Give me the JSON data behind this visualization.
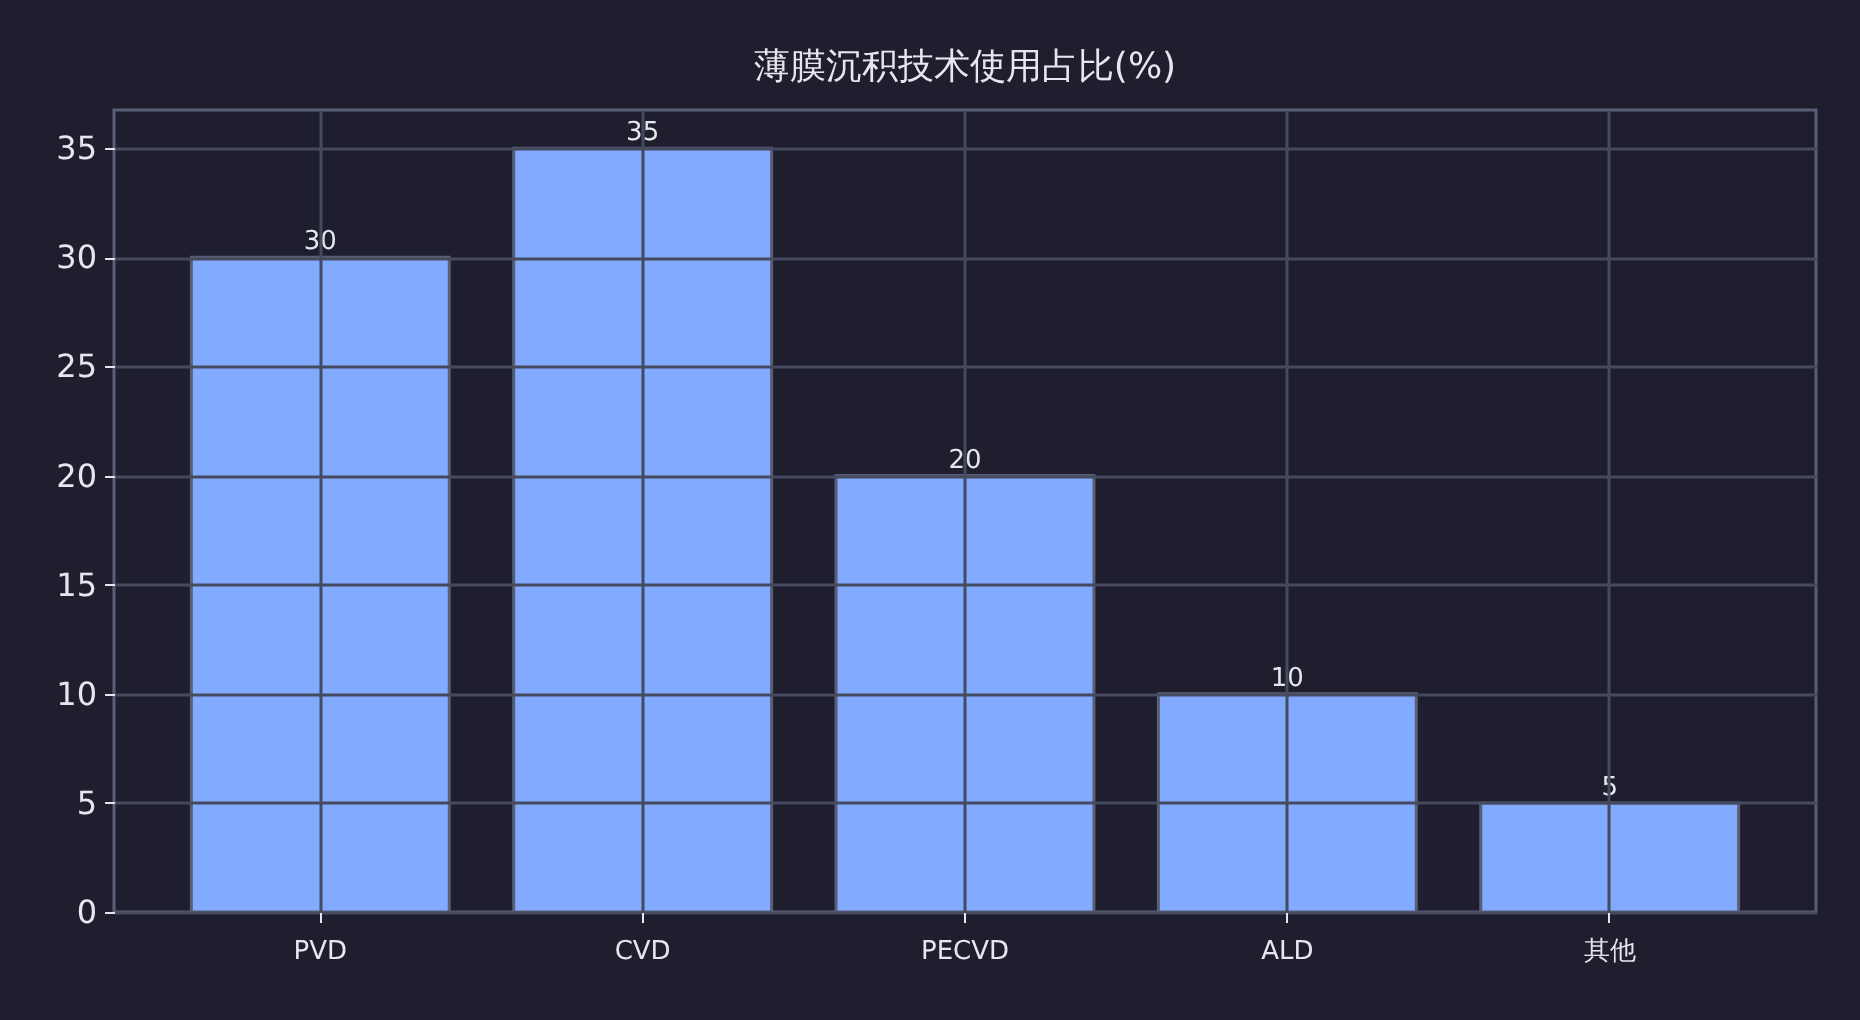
{
  "chart_data": {
    "type": "bar",
    "title": "薄膜沉积技术使用占比(%)",
    "categories": [
      "PVD",
      "CVD",
      "PECVD",
      "ALD",
      "其他"
    ],
    "values": [
      30,
      35,
      20,
      10,
      5
    ],
    "color": "#82aaff",
    "ylim": [
      0,
      36.75
    ],
    "yticks": [
      0,
      5,
      10,
      15,
      20,
      25,
      30,
      35
    ],
    "grid": true,
    "data_labels": true
  }
}
